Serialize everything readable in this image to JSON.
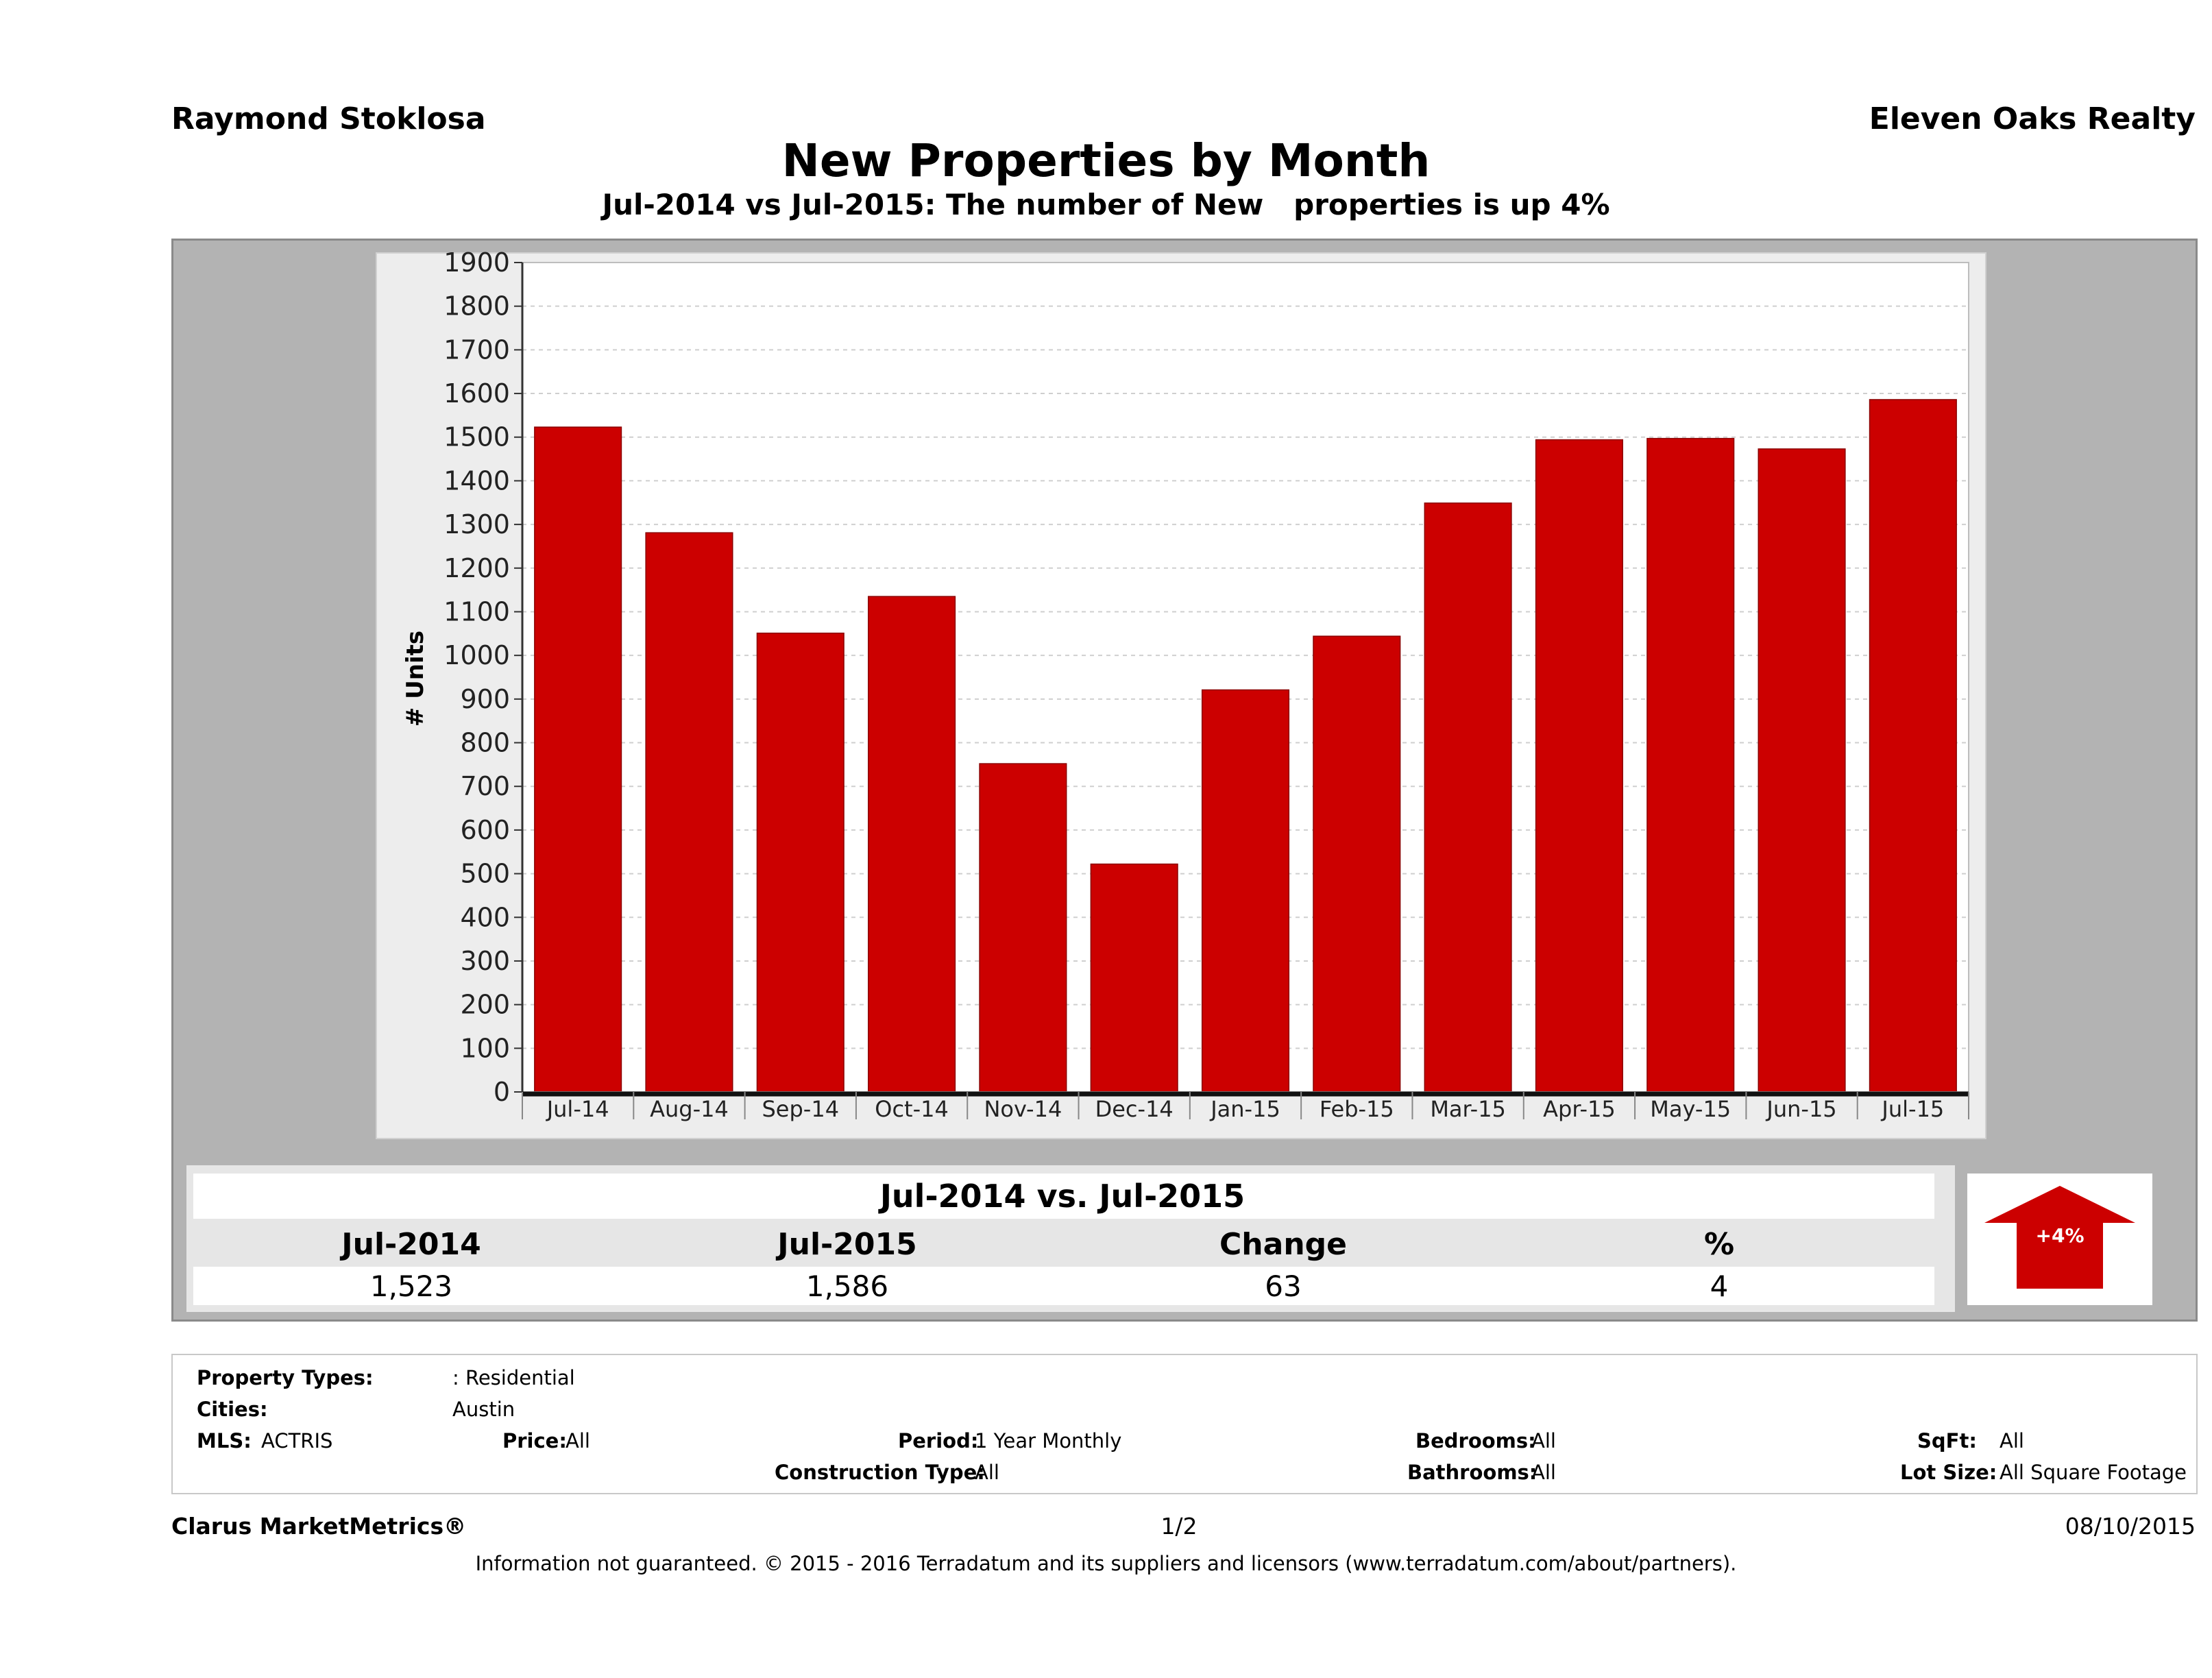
{
  "header": {
    "agent": "Raymond Stoklosa",
    "company": "Eleven Oaks Realty"
  },
  "chart_data": {
    "type": "bar",
    "title": "New Properties by Month",
    "subtitle": "Jul-2014 vs Jul-2015: The number of New   properties is up 4%",
    "ylabel": "# Units",
    "xlabel": "",
    "categories": [
      "Jul-14",
      "Aug-14",
      "Sep-14",
      "Oct-14",
      "Nov-14",
      "Dec-14",
      "Jan-15",
      "Feb-15",
      "Mar-15",
      "Apr-15",
      "May-15",
      "Jun-15",
      "Jul-15"
    ],
    "values": [
      1523,
      1281,
      1051,
      1135,
      752,
      522,
      921,
      1044,
      1349,
      1494,
      1497,
      1473,
      1586
    ],
    "ylim": [
      0,
      1900
    ],
    "yticks": [
      0,
      100,
      200,
      300,
      400,
      500,
      600,
      700,
      800,
      900,
      1000,
      1100,
      1200,
      1300,
      1400,
      1500,
      1600,
      1700,
      1800,
      1900
    ],
    "grid": true,
    "bar_color": "#cc0000"
  },
  "summary": {
    "title": "Jul-2014 vs. Jul-2015",
    "headers": [
      "Jul-2014",
      "Jul-2015",
      "Change",
      "%"
    ],
    "values": [
      "1,523",
      "1,586",
      "63",
      "4"
    ],
    "arrow_label": "+4%",
    "arrow_color": "#cc0000"
  },
  "criteria": {
    "property_types_label": "Property Types:",
    "property_types_value": ": Residential",
    "cities_label": "Cities:",
    "cities_value": "Austin",
    "mls_label": "MLS:",
    "mls_value": "ACTRIS",
    "price_label": "Price:",
    "price_value": "All",
    "period_label": "Period:",
    "period_value": "1 Year Monthly",
    "construction_label": "Construction Type:",
    "construction_value": "All",
    "bedrooms_label": "Bedrooms:",
    "bedrooms_value": "All",
    "bathrooms_label": "Bathrooms:",
    "bathrooms_value": "All",
    "sqft_label": "SqFt:",
    "sqft_value": "All",
    "lotsize_label": "Lot Size:",
    "lotsize_value": "All Square Footage"
  },
  "footer": {
    "brand": "Clarus MarketMetrics®",
    "page": "1/2",
    "date": "08/10/2015",
    "disclaimer": "Information not guaranteed. © 2015 - 2016 Terradatum and its suppliers and licensors (www.terradatum.com/about/partners)."
  }
}
